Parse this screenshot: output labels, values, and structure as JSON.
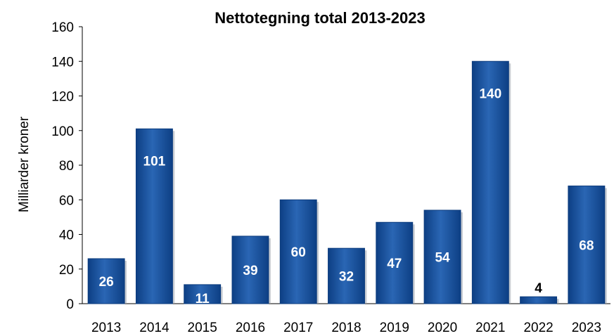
{
  "chart_data": {
    "type": "bar",
    "title": "Nettotegning total 2013-2023",
    "xlabel": "",
    "ylabel": "Milliarder kroner",
    "categories": [
      "2013",
      "2014",
      "2015",
      "2016",
      "2017",
      "2018",
      "2019",
      "2020",
      "2021",
      "2022",
      "2023"
    ],
    "values": [
      26,
      101,
      11,
      39,
      60,
      32,
      47,
      54,
      140,
      4,
      68
    ],
    "ylim": [
      0,
      160
    ],
    "yticks": [
      0,
      20,
      40,
      60,
      80,
      100,
      120,
      140,
      160
    ],
    "grid": false,
    "legend": "none",
    "colors": {
      "bar": "#1f5aa6",
      "bar_dark": "#0b3b7d",
      "label_inside": "#ffffff",
      "label_outside": "#000000"
    }
  }
}
